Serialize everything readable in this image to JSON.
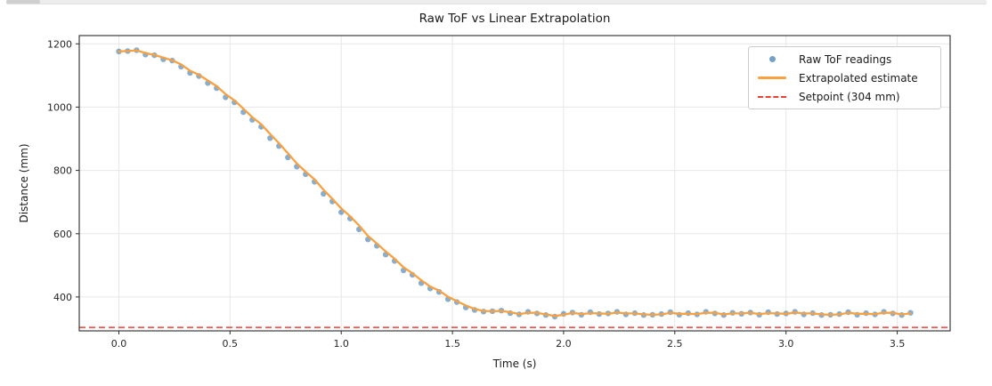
{
  "colors": {
    "scatter": "#4682b4",
    "scatter_opacity": 0.65,
    "line": "#f9a03f",
    "setpoint": "#ef3f35",
    "grid": "#e7e7e7",
    "spine": "#2b2b2b",
    "tick_text": "#262626",
    "legend_border": "#cccccc",
    "scrollbar_track": "#ececec",
    "scrollbar_thumb": "#cfcfcf"
  },
  "chart_data": {
    "type": "scatter",
    "title": "Raw ToF vs Linear Extrapolation",
    "xlabel": "Time (s)",
    "ylabel": "Distance (mm)",
    "xlim": [
      -0.178,
      3.738
    ],
    "ylim": [
      293,
      1226
    ],
    "xticks": [
      0.0,
      0.5,
      1.0,
      1.5,
      2.0,
      2.5,
      3.0,
      3.5
    ],
    "yticks": [
      400,
      600,
      800,
      1000,
      1200
    ],
    "grid": true,
    "legend_position": "upper right",
    "t0": 0,
    "dt": 0.04,
    "setpoint_mm": 304,
    "series": [
      {
        "name": "Raw ToF readings",
        "kind": "scatter",
        "values": [
          1176,
          1177,
          1180,
          1166,
          1164,
          1151,
          1147,
          1128,
          1108,
          1098,
          1076,
          1060,
          1031,
          1015,
          984,
          960,
          938,
          902,
          877,
          841,
          812,
          788,
          764,
          726,
          702,
          668,
          648,
          614,
          582,
          562,
          534,
          514,
          484,
          470,
          444,
          427,
          416,
          393,
          384,
          367,
          359,
          354,
          355,
          357,
          349,
          345,
          353,
          348,
          343,
          338,
          347,
          351,
          344,
          352,
          346,
          348,
          353,
          345,
          349,
          343,
          344,
          346,
          352,
          344,
          349,
          345,
          353,
          348,
          343,
          350,
          347,
          351,
          344,
          352,
          346,
          348,
          353,
          345,
          349,
          343,
          344,
          346,
          352,
          344,
          349,
          345,
          353,
          348,
          343,
          350
        ]
      },
      {
        "name": "Extrapolated estimate",
        "kind": "line",
        "values": [
          1176,
          1177,
          1179,
          1171,
          1165,
          1156,
          1148,
          1135,
          1115,
          1102,
          1084,
          1066,
          1041,
          1021,
          995,
          968,
          946,
          915,
          886,
          854,
          822,
          796,
          772,
          739,
          710,
          680,
          655,
          626,
          593,
          569,
          544,
          521,
          494,
          475,
          453,
          433,
          420,
          401,
          387,
          373,
          362,
          356,
          355,
          356,
          352,
          346,
          350,
          350,
          345,
          340,
          344,
          350,
          346,
          349,
          348,
          347,
          351,
          348,
          348,
          345,
          344,
          345,
          350,
          347,
          347,
          346,
          350,
          350,
          345,
          348,
          348,
          350,
          346,
          349,
          348,
          347,
          351,
          348,
          348,
          345,
          344,
          345,
          350,
          347,
          347,
          346,
          350,
          350,
          345,
          348
        ]
      },
      {
        "name": "Setpoint (304 mm)",
        "kind": "hline",
        "y": 304
      }
    ],
    "legend": {
      "entries": [
        {
          "label": "Raw ToF readings",
          "marker": "dot"
        },
        {
          "label": "Extrapolated estimate",
          "marker": "line"
        },
        {
          "label": "Setpoint (304 mm)",
          "marker": "dashed"
        }
      ]
    }
  }
}
